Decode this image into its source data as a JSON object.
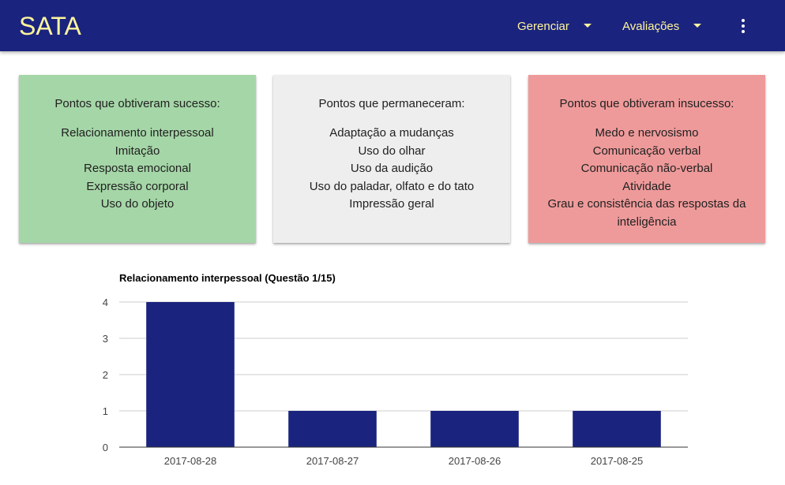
{
  "header": {
    "brand": "SATA",
    "menu_manage": "Gerenciar",
    "menu_evaluations": "Avaliações",
    "more_icon": "more-vert-icon"
  },
  "colors": {
    "primary": "#1a237e",
    "brand_text": "#fff59d",
    "success": "#a5d6a7",
    "neutral": "#eeeeee",
    "failure": "#ef9a9a",
    "bar": "#1a237e"
  },
  "cards": {
    "success": {
      "title": "Pontos que obtiveram sucesso:",
      "items": [
        "Relacionamento interpessoal",
        "Imitação",
        "Resposta emocional",
        "Expressão corporal",
        "Uso do objeto"
      ]
    },
    "stable": {
      "title": "Pontos que permaneceram:",
      "items": [
        "Adaptação a mudanças",
        "Uso do olhar",
        "Uso da audição",
        "Uso do paladar, olfato e do tato",
        "Impressão geral"
      ]
    },
    "fail": {
      "title": "Pontos que obtiveram insucesso:",
      "items": [
        "Medo e nervosismo",
        "Comunicação verbal",
        "Comunicação não-verbal",
        "Atividade",
        "Grau e consistência das respostas da inteligência"
      ]
    }
  },
  "chart_data": {
    "type": "bar",
    "title": "Relacionamento interpessoal (Questão 1/15)",
    "categories": [
      "2017-08-28",
      "2017-08-27",
      "2017-08-26",
      "2017-08-25"
    ],
    "values": [
      4,
      1,
      1,
      1
    ],
    "ylim": [
      0,
      4
    ],
    "yticks": [
      0,
      1,
      2,
      3,
      4
    ],
    "xlabel": "",
    "ylabel": "",
    "grid": true,
    "legend": "none"
  }
}
